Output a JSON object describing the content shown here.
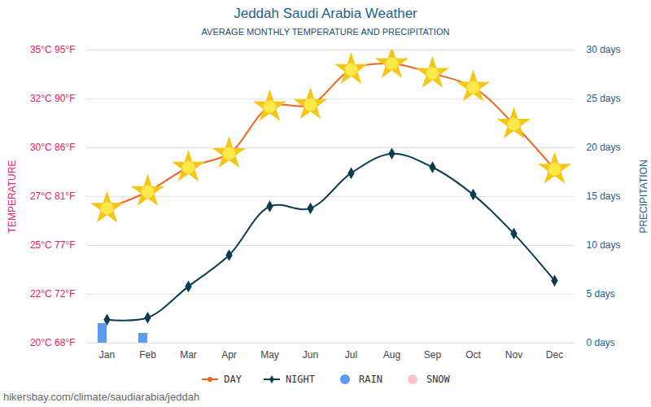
{
  "chart_data": {
    "type": "line",
    "title": "Jeddah Saudi Arabia Weather",
    "subtitle": "AVERAGE MONTHLY TEMPERATURE AND PRECIPITATION",
    "caption": "hikersbay.com/climate/saudiarabia/jeddah",
    "ylabel": "TEMPERATURE",
    "y2label": "PRECIPITATION",
    "categories": [
      "Jan",
      "Feb",
      "Mar",
      "Apr",
      "May",
      "Jun",
      "Jul",
      "Aug",
      "Sep",
      "Oct",
      "Nov",
      "Dec"
    ],
    "series": [
      {
        "name": "DAY",
        "type": "line",
        "color": "#f26522",
        "marker": "sun",
        "values": [
          26.9,
          27.75,
          29.0,
          29.7,
          32.1,
          32.2,
          34.0,
          34.3,
          33.8,
          33.1,
          31.2,
          28.9
        ]
      },
      {
        "name": "NIGHT",
        "type": "line",
        "color": "#0b3d52",
        "marker": "diamond",
        "values": [
          21.2,
          21.3,
          22.9,
          24.5,
          27.0,
          26.9,
          28.7,
          29.7,
          29.0,
          27.6,
          25.6,
          23.2
        ]
      },
      {
        "name": "RAIN",
        "type": "bar",
        "axis": "y2",
        "color": "#5b9cf0",
        "values": [
          2,
          1,
          0,
          0,
          0,
          0,
          0,
          0,
          0,
          0,
          0,
          0
        ]
      },
      {
        "name": "SNOW",
        "type": "bar",
        "axis": "y2",
        "color": "#ffc0cb",
        "values": [
          0,
          0,
          0,
          0,
          0,
          0,
          0,
          0,
          0,
          0,
          0,
          0
        ]
      }
    ],
    "ylim": [
      20,
      35
    ],
    "yticks": [
      {
        "value": 20,
        "label": "20°C 68°F"
      },
      {
        "value": 22.5,
        "label": "22°C 72°F"
      },
      {
        "value": 25,
        "label": "25°C 77°F"
      },
      {
        "value": 27.5,
        "label": "27°C 81°F"
      },
      {
        "value": 30,
        "label": "30°C 86°F"
      },
      {
        "value": 32.5,
        "label": "32°C 90°F"
      },
      {
        "value": 35,
        "label": "35°C 95°F"
      }
    ],
    "y2lim": [
      0,
      30
    ],
    "y2ticks": [
      {
        "value": 0,
        "label": "0 days"
      },
      {
        "value": 5,
        "label": "5 days"
      },
      {
        "value": 10,
        "label": "10 days"
      },
      {
        "value": 15,
        "label": "15 days"
      },
      {
        "value": 20,
        "label": "20 days"
      },
      {
        "value": 25,
        "label": "25 days"
      },
      {
        "value": 30,
        "label": "30 days"
      }
    ],
    "grid": true
  }
}
